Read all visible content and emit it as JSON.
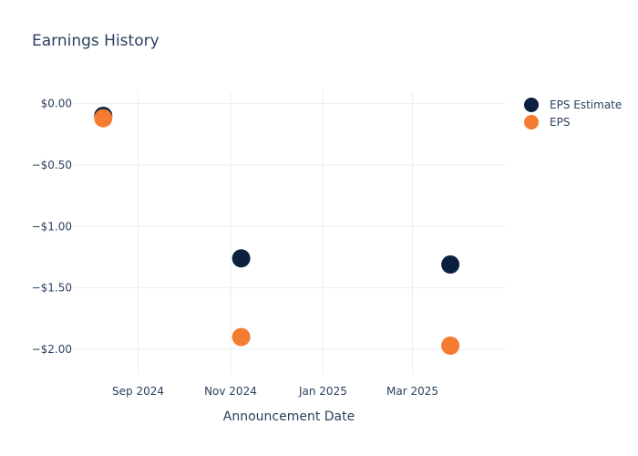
{
  "chart_data": {
    "type": "scatter",
    "title": "Earnings History",
    "xlabel": "Announcement Date",
    "ylabel": "",
    "x_tick_labels": [
      {
        "date": "2024-09-01",
        "label": "Sep 2024"
      },
      {
        "date": "2024-11-01",
        "label": "Nov 2024"
      },
      {
        "date": "2025-01-01",
        "label": "Jan 2025"
      },
      {
        "date": "2025-03-01",
        "label": "Mar 2025"
      }
    ],
    "y_tick_labels": [
      {
        "value": 0.0,
        "label": "$0.00"
      },
      {
        "value": -0.5,
        "label": "−$0.50"
      },
      {
        "value": -1.0,
        "label": "−$1.00"
      },
      {
        "value": -1.5,
        "label": "−$1.50"
      },
      {
        "value": -2.0,
        "label": "−$2.00"
      }
    ],
    "xlim": [
      "2024-07-20",
      "2025-05-01"
    ],
    "ylim": [
      -2.2,
      0.1
    ],
    "grid": true,
    "legend_position": "top-right",
    "series": [
      {
        "name": "EPS Estimate",
        "color": "#0b1f3f",
        "points": [
          {
            "x": "2024-08-09",
            "y": -0.1
          },
          {
            "x": "2024-11-08",
            "y": -1.26
          },
          {
            "x": "2025-03-26",
            "y": -1.31
          }
        ]
      },
      {
        "name": "EPS",
        "color": "#f47c31",
        "points": [
          {
            "x": "2024-08-09",
            "y": -0.12
          },
          {
            "x": "2024-11-08",
            "y": -1.9
          },
          {
            "x": "2025-03-26",
            "y": -1.97
          }
        ]
      }
    ]
  }
}
